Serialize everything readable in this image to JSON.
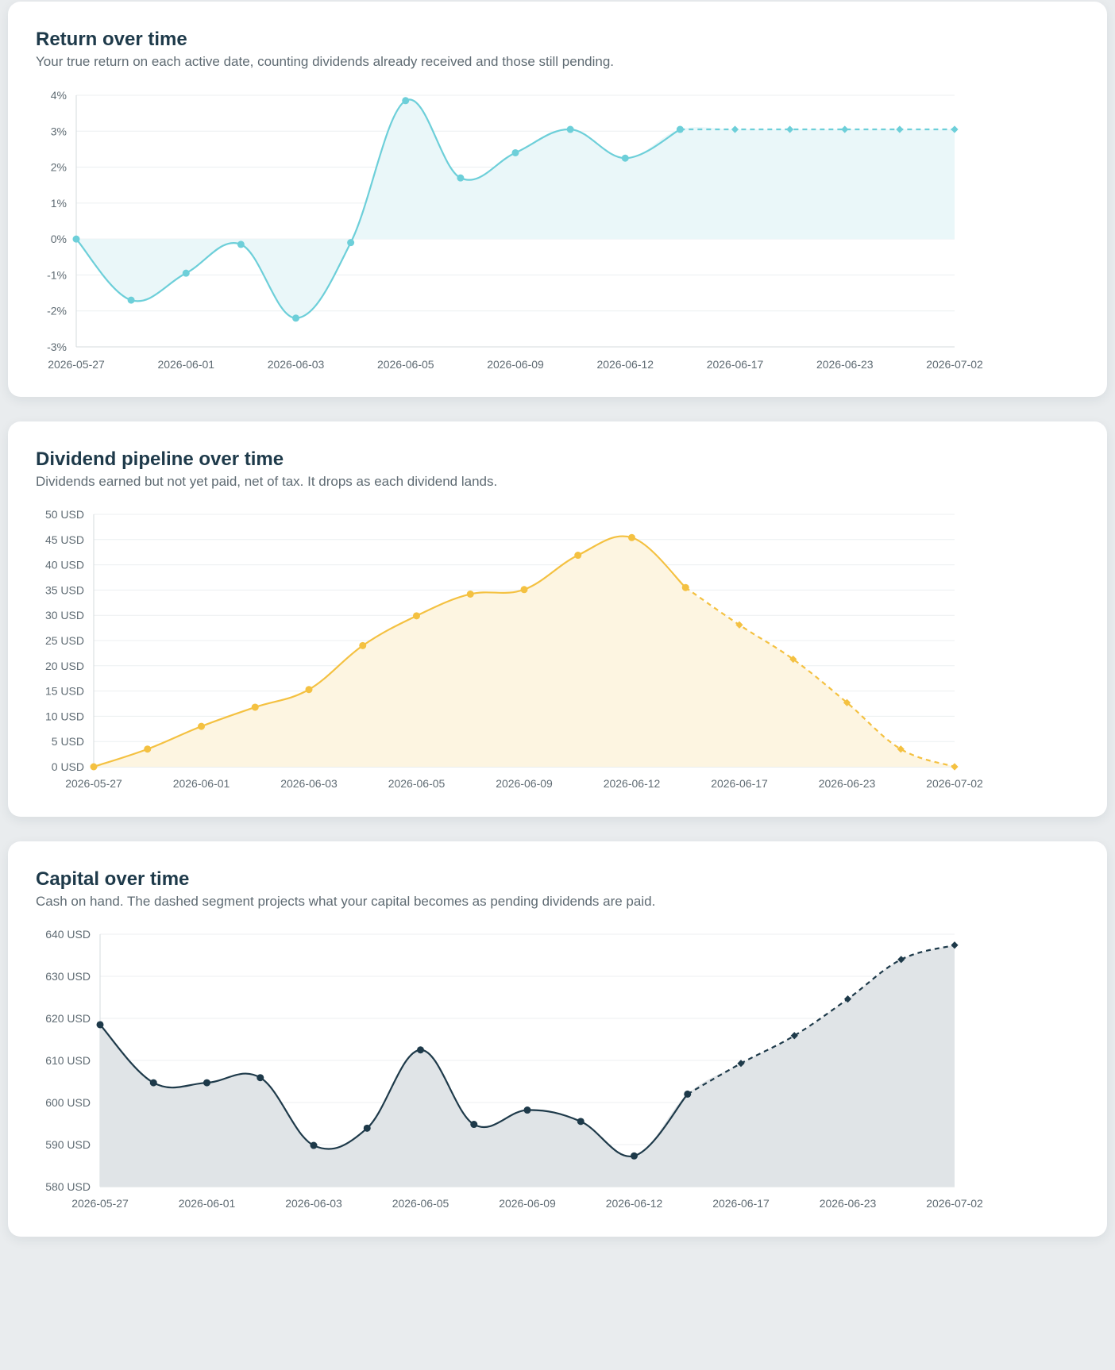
{
  "charts": [
    {
      "title": "Return over time",
      "description": "Your true return on each active date, counting dividends already received and those still pending."
    },
    {
      "title": "Dividend pipeline over time",
      "description": "Dividends earned but not yet paid, net of tax. It drops as each dividend lands."
    },
    {
      "title": "Capital over time",
      "description": "Cash on hand. The dashed segment projects what your capital becomes as pending dividends are paid."
    }
  ],
  "colors": {
    "return": "#6dcfd9",
    "return_fill": "#eaf7f9",
    "pipeline": "#f4c141",
    "pipeline_fill": "#fdf5e1",
    "capital": "#1e3a4a",
    "capital_fill": "#e0e4e7",
    "grid": "#eceff1",
    "axis_text": "#5f6b73"
  },
  "chart_data": [
    {
      "type": "area",
      "title": "Return over time",
      "x_tick_labels": [
        "2026-05-27",
        "2026-06-01",
        "2026-06-03",
        "2026-06-05",
        "2026-06-09",
        "2026-06-12",
        "2026-06-17",
        "2026-06-23",
        "2026-07-02"
      ],
      "y_tick_labels": [
        "4%",
        "3%",
        "2%",
        "1%",
        "0%",
        "-1%",
        "-2%",
        "-3%"
      ],
      "ylim": [
        -3,
        4
      ],
      "unit": "%",
      "points": 17,
      "actual_values": [
        0,
        -1.7,
        -0.95,
        -0.15,
        -2.2,
        -0.1,
        3.85,
        1.7,
        2.4,
        3.05,
        2.25,
        3.05
      ],
      "projected_values": [
        3.05,
        3.05,
        3.05,
        3.05,
        3.05,
        3.05
      ],
      "grid": true,
      "legend": "none"
    },
    {
      "type": "area",
      "title": "Dividend pipeline over time",
      "x_tick_labels": [
        "2026-05-27",
        "2026-06-01",
        "2026-06-03",
        "2026-06-05",
        "2026-06-09",
        "2026-06-12",
        "2026-06-17",
        "2026-06-23",
        "2026-07-02"
      ],
      "y_tick_labels": [
        "50 USD",
        "45 USD",
        "40 USD",
        "35 USD",
        "30 USD",
        "25 USD",
        "20 USD",
        "15 USD",
        "10 USD",
        "5 USD",
        "0 USD"
      ],
      "ylim": [
        0,
        50
      ],
      "unit": "USD",
      "points": 17,
      "actual_values": [
        0,
        3.5,
        8,
        11.8,
        15.3,
        24,
        29.9,
        34.2,
        35.1,
        41.9,
        45.4,
        35.5
      ],
      "projected_values": [
        35.5,
        28.1,
        21.3,
        12.7,
        3.5,
        0
      ],
      "grid": true,
      "legend": "none"
    },
    {
      "type": "area",
      "title": "Capital over time",
      "x_tick_labels": [
        "2026-05-27",
        "2026-06-01",
        "2026-06-03",
        "2026-06-05",
        "2026-06-09",
        "2026-06-12",
        "2026-06-17",
        "2026-06-23",
        "2026-07-02"
      ],
      "y_tick_labels": [
        "640 USD",
        "630 USD",
        "620 USD",
        "610 USD",
        "600 USD",
        "590 USD",
        "580 USD"
      ],
      "ylim": [
        580,
        640
      ],
      "unit": "USD",
      "points": 17,
      "actual_values": [
        618.5,
        604.7,
        604.7,
        605.9,
        589.8,
        593.9,
        612.5,
        594.8,
        598.2,
        595.5,
        587.3,
        602
      ],
      "projected_values": [
        602,
        609.3,
        615.9,
        624.6,
        634,
        637.4
      ],
      "grid": true,
      "legend": "none"
    }
  ]
}
